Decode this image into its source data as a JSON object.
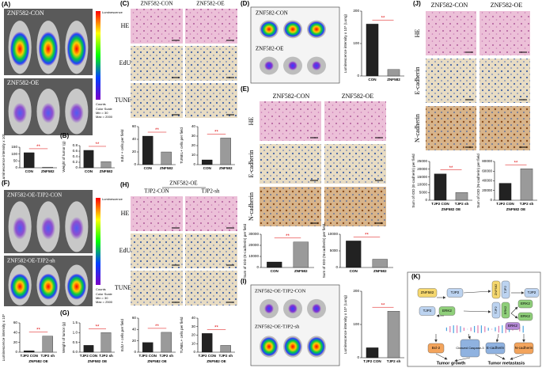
{
  "panels": {
    "A": {
      "label": "(A)",
      "rows": [
        "ZNF582-CON",
        "ZNF582-OE"
      ],
      "colorbar": {
        "title": "Luminescence",
        "unit": "Counts",
        "scale": "Color Scale",
        "min": "Min = 30",
        "max": "Max = 2000"
      },
      "chart": {
        "type": "bar",
        "ylabel": "Luminescence intensity x 10⁵",
        "categories": [
          "CON",
          "ZNF582"
        ],
        "values": [
          110,
          5
        ],
        "ylim": [
          0,
          150
        ],
        "yticks": [
          0,
          50,
          100,
          150
        ],
        "colors": [
          "#222222",
          "#9a9a9a"
        ],
        "sig": "**"
      }
    },
    "B": {
      "label": "(B)",
      "chart": {
        "type": "bar",
        "ylabel": "Weight of tumor (g)",
        "categories": [
          "CON",
          "ZNF582"
        ],
        "values": [
          0.63,
          0.22
        ],
        "ylim": [
          0,
          0.8
        ],
        "yticks": [
          0,
          0.2,
          0.4,
          0.6,
          0.8
        ],
        "colors": [
          "#222222",
          "#9a9a9a"
        ],
        "sig": "**"
      }
    },
    "C": {
      "label": "(C)",
      "columns": [
        "ZNF582-CON",
        "ZNF582-OE"
      ],
      "rows": [
        "HE",
        "EdU",
        "TUNEL"
      ],
      "charts": [
        {
          "type": "bar",
          "ylabel": "EdU + cells per field",
          "categories": [
            "CON",
            "ZNF582"
          ],
          "values": [
            45,
            20
          ],
          "ylim": [
            0,
            60
          ],
          "yticks": [
            0,
            20,
            40,
            60
          ],
          "colors": [
            "#222222",
            "#9a9a9a"
          ],
          "sig": "**"
        },
        {
          "type": "bar",
          "ylabel": "TUNEL+ cells per field",
          "categories": [
            "CON",
            "ZNF582"
          ],
          "values": [
            5,
            28
          ],
          "ylim": [
            0,
            40
          ],
          "yticks": [
            0,
            10,
            20,
            30,
            40
          ],
          "colors": [
            "#222222",
            "#9a9a9a"
          ],
          "sig": "**"
        }
      ]
    },
    "D": {
      "label": "(D)",
      "rows": [
        "ZNF582-CON",
        "ZNF582-OE"
      ],
      "chart": {
        "type": "bar",
        "ylabel": "Luminescence intensity x 10⁵ (Lung)",
        "categories": [
          "CON",
          "ZNF582"
        ],
        "values": [
          160,
          20
        ],
        "ylim": [
          0,
          200
        ],
        "yticks": [
          0,
          100,
          200
        ],
        "colors": [
          "#222222",
          "#9a9a9a"
        ],
        "sig": "**"
      }
    },
    "E": {
      "label": "(E)",
      "columns": [
        "ZNF582-CON",
        "ZNF582-OE"
      ],
      "rows": [
        "HE",
        "E-cadherin",
        "N-cadherin"
      ],
      "charts": [
        {
          "type": "bar",
          "ylabel": "Sum of IOD (E-cadherin) per field",
          "categories": [
            "CON",
            "ZNF582"
          ],
          "values": [
            5000,
            23000
          ],
          "ylim": [
            0,
            30000
          ],
          "yticks": [
            0,
            10000,
            20000,
            30000
          ],
          "colors": [
            "#222222",
            "#9a9a9a"
          ],
          "sig": "**"
        },
        {
          "type": "bar",
          "ylabel": "Sum of IOD (N-cadherin) per field",
          "categories": [
            "CON",
            "ZNF582"
          ],
          "values": [
            8000,
            2500
          ],
          "ylim": [
            0,
            10000
          ],
          "yticks": [
            0,
            5000,
            10000
          ],
          "colors": [
            "#222222",
            "#9a9a9a"
          ],
          "sig": "**"
        }
      ]
    },
    "F": {
      "label": "(F)",
      "rows": [
        "ZNF582-OE-TJP2-CON",
        "ZNF582-OE-TJP2-sh"
      ],
      "colorbar": {
        "title": "Luminescence",
        "unit": "Counts",
        "scale": "Color Scale",
        "min": "Min = 30",
        "max": "Max = 2500"
      },
      "chart": {
        "type": "bar",
        "ylabel": "Luminescence intensity x 10⁵",
        "categories": [
          "TJP2 CON",
          "TJP2 sh"
        ],
        "xlabel": "ZNF582 OE",
        "values": [
          3,
          33
        ],
        "ylim": [
          0,
          60
        ],
        "yticks": [
          0,
          20,
          40,
          60
        ],
        "colors": [
          "#222222",
          "#9a9a9a"
        ],
        "sig": "**"
      }
    },
    "G": {
      "label": "(G)",
      "chart": {
        "type": "bar",
        "ylabel": "Weight of tumor (g)",
        "categories": [
          "TJP2 CON",
          "TJP2 sh"
        ],
        "xlabel": "ZNF582 OE",
        "values": [
          0.35,
          1.0
        ],
        "ylim": [
          0,
          1.5
        ],
        "yticks": [
          {
            "value": 0,
            "label": "0.0"
          },
          {
            "value": 0.5,
            "label": "0.5"
          },
          {
            "value": 1,
            "label": "1.0"
          },
          {
            "value": 1.5,
            "label": "1.5"
          }
        ],
        "colors": [
          "#222222",
          "#9a9a9a"
        ],
        "sig": "**"
      }
    },
    "H": {
      "label": "(H)",
      "group": "ZNF582-OE",
      "columns": [
        "TJP2-CON",
        "TJP2-sh"
      ],
      "rows": [
        "HE",
        "EdU",
        "TUNEL"
      ],
      "charts": [
        {
          "type": "bar",
          "ylabel": "EdU + cells per field",
          "categories": [
            "TJP2 CON",
            "TJP2 sh"
          ],
          "xlabel": "ZNF582 OE",
          "values": [
            17,
            35
          ],
          "ylim": [
            0,
            60
          ],
          "yticks": [
            0,
            20,
            40,
            60
          ],
          "colors": [
            "#222222",
            "#9a9a9a"
          ],
          "sig": "**"
        },
        {
          "type": "bar",
          "ylabel": "TUNEL+ cells per field",
          "categories": [
            "TJP2 CON",
            "TJP2 sh"
          ],
          "xlabel": "ZNF582 OE",
          "values": [
            22,
            8
          ],
          "ylim": [
            0,
            40
          ],
          "yticks": [
            0,
            10,
            20,
            30,
            40
          ],
          "colors": [
            "#222222",
            "#9a9a9a"
          ],
          "sig": "**"
        }
      ]
    },
    "I": {
      "label": "(I)",
      "rows": [
        "ZNF582-OE-TJP2-CON",
        "ZNF582-OE-TJP2-sh"
      ],
      "chart": {
        "type": "bar",
        "ylabel": "Luminescence intensity x 10⁵ (Lung)",
        "categories": [
          "TJP2 CON",
          "TJP2 sh"
        ],
        "values": [
          30,
          140
        ],
        "ylim": [
          0,
          200
        ],
        "yticks": [
          0,
          100,
          200
        ],
        "colors": [
          "#222222",
          "#9a9a9a"
        ],
        "sig": "**"
      }
    },
    "J": {
      "label": "(J)",
      "columns": [
        "ZNF582-CON",
        "ZNF582-OE"
      ],
      "rows": [
        "HE",
        "E-cadherin",
        "N-cadherin"
      ],
      "charts": [
        {
          "type": "bar",
          "ylabel": "Sum of IOD (E-cadherin) per field",
          "categories": [
            "TJP2 CON",
            "TJP2 sh"
          ],
          "xlabel": "ZNF582 OE",
          "values": [
            17000,
            5000
          ],
          "ylim": [
            0,
            25000
          ],
          "yticks": [
            0,
            5000,
            10000,
            15000,
            20000,
            25000
          ],
          "colors": [
            "#222222",
            "#9a9a9a"
          ],
          "sig": "**"
        },
        {
          "type": "bar",
          "ylabel": "Sum of IOD (N-cadherin) per field",
          "categories": [
            "TJP2 CON",
            "TJP2 sh"
          ],
          "xlabel": "ZNF582 OE",
          "values": [
            35000,
            65000
          ],
          "ylim": [
            0,
            80000
          ],
          "yticks": [
            0,
            20000,
            40000,
            60000,
            80000
          ],
          "colors": [
            "#222222",
            "#9a9a9a"
          ],
          "sig": "**"
        }
      ]
    },
    "K": {
      "label": "(K)",
      "nodes": [
        "ZNF582",
        "TJP2",
        "ZNF582",
        "TJP2",
        "TJP2",
        "TJP2",
        "ERK2",
        "TJP2",
        "ERK2",
        "ERK2",
        "ERK2",
        "ERK2",
        "Bcl-2",
        "Cleaved Caspase-3",
        "E-cadherin",
        "N-cadherin"
      ],
      "outcomes": [
        "Tumor growth",
        "Tumor metastasis"
      ]
    }
  }
}
